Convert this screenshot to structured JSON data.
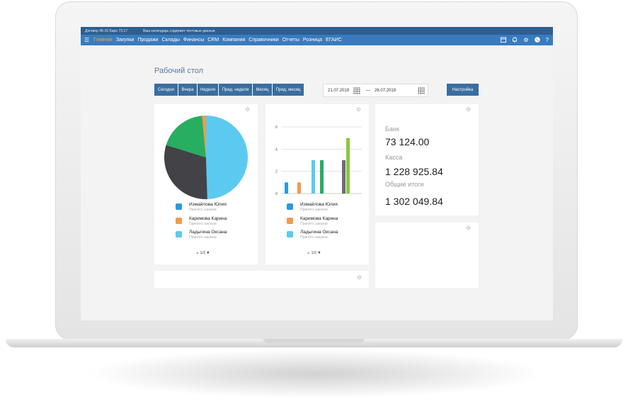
{
  "topbar": {
    "left_text": "Договор 46-16 Баро 73.17",
    "notice": "Ваш календарь содержит тестовые данные."
  },
  "nav": {
    "items": [
      "Главная",
      "Закупки",
      "Продажи",
      "Склады",
      "Финансы",
      "CRM",
      "Компания",
      "Справочники",
      "Отчеты",
      "Розница",
      "ЕГАИС"
    ],
    "active": "Главная",
    "accent": "#f7a54a",
    "bar_color": "#3a7bbf",
    "right_icons": [
      "calendar-icon",
      "bell-icon",
      "gear-icon",
      "phone-icon",
      "help-icon"
    ],
    "help_glyph": "?"
  },
  "page": {
    "title": "Рабочий стол",
    "period_buttons": [
      "Сегодня",
      "Вчера",
      "Неделя",
      "Пред. неделя",
      "Месяц",
      "Пред. месяц"
    ],
    "date_from": "21.07.2019",
    "date_sep": "—",
    "date_to": "26.07.2019",
    "settings_label": "Настройка"
  },
  "pie_widget": {
    "legend": [
      {
        "name": "Измайлова Юлия",
        "sub": "Принято заказов",
        "color": "#2b9ad8"
      },
      {
        "name": "Каримова Карина",
        "sub": "Принято заказов",
        "color": "#f29b4c"
      },
      {
        "name": "Ладыгина Оксана",
        "sub": "Принято заказов",
        "color": "#5ccaf0"
      }
    ],
    "pager": "1/2"
  },
  "bar_widget": {
    "legend": [
      {
        "name": "Измайлова Юлия",
        "sub": "Принято заказов",
        "color": "#2b9ad8"
      },
      {
        "name": "Каримова Карина",
        "sub": "Принято заказов",
        "color": "#f29b4c"
      },
      {
        "name": "Ладыгина Оксана",
        "sub": "Принято заказов",
        "color": "#5ccaf0"
      }
    ],
    "pager": "1/2"
  },
  "totals": {
    "bank_label": "Банк",
    "bank_value": "73 124.00",
    "cash_label": "Касса",
    "cash_value": "1 228 925.84",
    "total_label": "Общие итоги",
    "total_value": "1 302 049.84"
  },
  "chart_data": [
    {
      "type": "pie",
      "slices": [
        {
          "color": "#5ccaf0",
          "value": 49.5
        },
        {
          "color": "#424247",
          "value": 30.3
        },
        {
          "color": "#27ae60",
          "value": 18.7
        },
        {
          "color": "#f29b4c",
          "value": 1.5
        }
      ]
    },
    {
      "type": "bar",
      "ylim": [
        0,
        6
      ],
      "yticks": [
        "0",
        "2",
        "4",
        "6"
      ],
      "bars": [
        {
          "color": "#2b9ad8",
          "value": 1
        },
        {
          "color": "#f29b4c",
          "value": 1
        },
        {
          "color": "#5ccaf0",
          "value": 3
        },
        {
          "color": "#27ae60",
          "value": 3
        },
        {
          "color": "#6d6d70",
          "value": 3
        },
        {
          "color": "#8cc63f",
          "value": 5
        }
      ],
      "grid": true
    }
  ]
}
